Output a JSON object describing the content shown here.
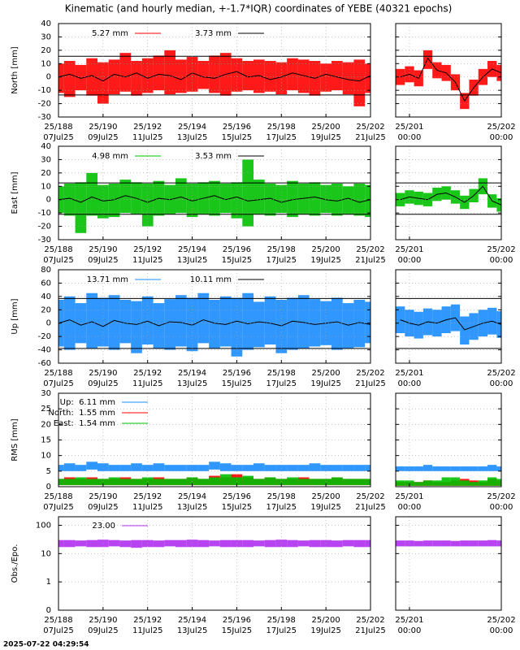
{
  "chart_data": {
    "type": "scatter",
    "title": "Kinematic (and hourly median, +-1.7*IQR) coordinates of YEBE (40321 epochs)",
    "timestamp": "2025-07-22 04:29:54",
    "grid": true,
    "x": [
      188,
      188.5,
      189,
      189.5,
      190,
      190.5,
      191,
      191.5,
      192,
      192.5,
      193,
      193.5,
      194,
      194.5,
      195,
      195.5,
      196,
      196.5,
      197,
      197.5,
      198,
      198.5,
      199,
      199.5,
      200,
      200.5,
      201,
      201.5,
      202
    ],
    "xlim": [
      188,
      202
    ],
    "xticks": [
      {
        "value": 188,
        "label": "25/188",
        "sublabel": "07Jul25"
      },
      {
        "value": 190,
        "label": "25/190",
        "sublabel": "09Jul25"
      },
      {
        "value": 192,
        "label": "25/192",
        "sublabel": "11Jul25"
      },
      {
        "value": 194,
        "label": "25/194",
        "sublabel": "13Jul25"
      },
      {
        "value": 196,
        "label": "25/196",
        "sublabel": "15Jul25"
      },
      {
        "value": 198,
        "label": "25/198",
        "sublabel": "17Jul25"
      },
      {
        "value": 200,
        "label": "25/200",
        "sublabel": "19Jul25"
      },
      {
        "value": 202,
        "label": "25/202",
        "sublabel": "21Jul25"
      }
    ],
    "zoom": {
      "x": [
        200.9,
        201,
        201.1,
        201.2,
        201.3,
        201.4,
        201.5,
        201.6,
        201.7,
        201.8,
        201.9,
        202
      ],
      "xlim": [
        200.85,
        202
      ],
      "xticks": [
        {
          "value": 201,
          "label": "25/201",
          "sublabel": "00:00"
        },
        {
          "value": 202,
          "label": "25/202",
          "sublabel": "00:00"
        }
      ]
    },
    "panels": [
      {
        "ylabel": "North [mm]",
        "ylim": [
          -30,
          40
        ],
        "yticks": [
          -30,
          -20,
          -10,
          0,
          10,
          20,
          30,
          40
        ],
        "log": false,
        "legend": "horizontal",
        "limits": [
          15.5,
          -13.5
        ],
        "series": [
          {
            "name": "5.27 mm",
            "color": "#ff0000",
            "low": [
              -12,
              -15,
              -10,
              -14,
              -20,
              -13,
              -11,
              -14,
              -12,
              -10,
              -13,
              -12,
              -11,
              -9,
              -12,
              -14,
              -11,
              -10,
              -12,
              -11,
              -13,
              -10,
              -12,
              -14,
              -11,
              -10,
              -13,
              -22,
              -12
            ],
            "high": [
              10,
              12,
              9,
              14,
              11,
              13,
              18,
              12,
              14,
              16,
              20,
              13,
              15,
              12,
              16,
              18,
              14,
              12,
              13,
              12,
              11,
              14,
              13,
              12,
              10,
              12,
              11,
              13,
              10
            ]
          },
          {
            "name": "3.73 mm",
            "color": "#000000",
            "values": [
              0,
              2,
              -1,
              1,
              -3,
              2,
              0,
              3,
              -1,
              2,
              1,
              -2,
              3,
              0,
              -1,
              2,
              4,
              0,
              1,
              -2,
              0,
              3,
              1,
              -1,
              2,
              0,
              -2,
              -3,
              1
            ]
          }
        ],
        "zoom_series": [
          {
            "low": [
              -6,
              -4,
              -7,
              6,
              -1,
              -3,
              -10,
              -24,
              -14,
              -6,
              0,
              -3
            ],
            "high": [
              6,
              8,
              5,
              20,
              11,
              9,
              2,
              -12,
              -2,
              6,
              12,
              9
            ]
          },
          {
            "values": [
              0,
              2,
              -1,
              14,
              5,
              3,
              -4,
              -18,
              -8,
              0,
              6,
              3
            ]
          }
        ]
      },
      {
        "ylabel": "East [mm]",
        "ylim": [
          -30,
          40
        ],
        "yticks": [
          -30,
          -20,
          -10,
          0,
          10,
          20,
          30,
          40
        ],
        "log": false,
        "legend": "horizontal",
        "limits": [
          12.5,
          -11
        ],
        "series": [
          {
            "name": "4.98 mm",
            "color": "#00c000",
            "low": [
              -10,
              -12,
              -25,
              -12,
              -14,
              -13,
              -10,
              -11,
              -20,
              -12,
              -11,
              -10,
              -13,
              -11,
              -12,
              -10,
              -14,
              -20,
              -11,
              -12,
              -10,
              -13,
              -11,
              -12,
              -10,
              -12,
              -11,
              -12,
              -13
            ],
            "high": [
              10,
              12,
              13,
              20,
              11,
              12,
              15,
              13,
              12,
              14,
              11,
              16,
              12,
              13,
              14,
              12,
              13,
              30,
              15,
              12,
              11,
              14,
              12,
              13,
              11,
              12,
              10,
              12,
              11
            ]
          },
          {
            "name": "3.53 mm",
            "color": "#000000",
            "values": [
              0,
              1,
              -2,
              2,
              -1,
              0,
              3,
              1,
              -2,
              1,
              0,
              2,
              -1,
              1,
              3,
              0,
              2,
              -1,
              0,
              1,
              -2,
              0,
              1,
              2,
              0,
              -1,
              1,
              -2,
              0
            ]
          }
        ],
        "zoom_series": [
          {
            "low": [
              -5,
              -3,
              -4,
              -5,
              -1,
              0,
              -3,
              -7,
              -2,
              4,
              -6,
              -9
            ],
            "high": [
              5,
              7,
              6,
              5,
              9,
              10,
              7,
              3,
              8,
              16,
              4,
              1
            ]
          },
          {
            "values": [
              0,
              2,
              1,
              0,
              4,
              5,
              2,
              -2,
              3,
              10,
              -1,
              -4
            ]
          }
        ]
      },
      {
        "ylabel": "Up [mm]",
        "ylim": [
          -60,
          80
        ],
        "yticks": [
          -60,
          -40,
          -20,
          0,
          20,
          40,
          60,
          80
        ],
        "log": false,
        "legend": "horizontal",
        "limits": [
          37,
          -38
        ],
        "series": [
          {
            "name": "13.71 mm",
            "color": "#1a8cff",
            "low": [
              -35,
              -40,
              -30,
              -38,
              -35,
              -40,
              -30,
              -45,
              -32,
              -38,
              -40,
              -35,
              -42,
              -30,
              -38,
              -35,
              -50,
              -40,
              -36,
              -32,
              -45,
              -40,
              -38,
              -35,
              -33,
              -40,
              -38,
              -36,
              -30
            ],
            "high": [
              35,
              40,
              30,
              45,
              38,
              42,
              35,
              33,
              40,
              30,
              36,
              42,
              38,
              45,
              35,
              40,
              38,
              45,
              32,
              40,
              35,
              38,
              42,
              36,
              33,
              38,
              30,
              35,
              32
            ]
          },
          {
            "name": "10.11 mm",
            "color": "#000000",
            "values": [
              0,
              5,
              -3,
              2,
              -5,
              4,
              0,
              -2,
              3,
              -4,
              2,
              1,
              -3,
              5,
              0,
              -2,
              3,
              -1,
              2,
              0,
              -4,
              3,
              1,
              -2,
              0,
              2,
              -3,
              1,
              -2
            ]
          }
        ],
        "zoom_series": [
          {
            "low": [
              -15,
              -20,
              -23,
              -18,
              -20,
              -15,
              -12,
              -32,
              -25,
              -20,
              -17,
              -22
            ],
            "high": [
              25,
              20,
              17,
              22,
              20,
              25,
              28,
              10,
              15,
              20,
              23,
              18
            ]
          },
          {
            "values": [
              5,
              0,
              -3,
              2,
              0,
              5,
              8,
              -10,
              -5,
              0,
              3,
              -2
            ]
          }
        ]
      },
      {
        "ylabel": "RMS [mm]",
        "ylim": [
          0,
          30
        ],
        "yticks": [
          0,
          5,
          10,
          15,
          20,
          25,
          30
        ],
        "log": false,
        "legend": "vertical",
        "series": [
          {
            "name": "Up:  6.11 mm",
            "color": "#1a8cff",
            "low": [
              5,
              5,
              5,
              5.5,
              5,
              5,
              5,
              5,
              5,
              5,
              5,
              5,
              5,
              5,
              5.5,
              5,
              5,
              5,
              5,
              5,
              5,
              5,
              5,
              5,
              5,
              5,
              5,
              5,
              5
            ],
            "high": [
              7,
              7.5,
              7,
              8,
              7.5,
              7,
              7,
              7.5,
              7,
              7.5,
              7,
              7,
              7,
              7,
              8,
              7.5,
              7,
              7,
              7.5,
              7,
              7,
              7,
              7,
              7.5,
              7,
              7,
              7,
              7,
              7
            ]
          },
          {
            "name": "North:  1.55 mm",
            "color": "#ff0000",
            "low": [
              0.5,
              0.5,
              0.5,
              0.5,
              0.5,
              0.5,
              0.5,
              0.5,
              0.5,
              0.5,
              0.5,
              0.5,
              0.5,
              0.5,
              0.5,
              0.5,
              0.5,
              0.5,
              0.5,
              0.5,
              0.5,
              0.5,
              0.5,
              0.5,
              0.5,
              0.5,
              0.5,
              0.5,
              0.5
            ],
            "high": [
              2.5,
              3,
              2.5,
              3,
              2.5,
              2.5,
              3,
              2.5,
              2.5,
              3,
              2.5,
              2.5,
              3,
              2.5,
              3.5,
              3,
              4,
              3,
              2.5,
              3,
              2.5,
              2.5,
              3,
              2.5,
              2.5,
              3,
              2.5,
              2.5,
              2.5
            ]
          },
          {
            "name": "East:  1.54 mm",
            "color": "#00c000",
            "low": [
              0.5,
              0.5,
              0.5,
              0.5,
              0.5,
              0.5,
              0.5,
              0.5,
              0.5,
              0.5,
              0.5,
              0.5,
              0.5,
              0.5,
              0.5,
              0.5,
              0.5,
              0.5,
              0.5,
              0.5,
              0.5,
              0.5,
              0.5,
              0.5,
              0.5,
              0.5,
              0.5,
              0.5,
              0.5
            ],
            "high": [
              2.5,
              2.5,
              3,
              2.5,
              2.5,
              3,
              2.5,
              2.5,
              3,
              2.5,
              2.5,
              2.5,
              3,
              2.5,
              3,
              4,
              3,
              3.5,
              2.5,
              3,
              2.5,
              3,
              2.5,
              2.5,
              2.5,
              3,
              2.5,
              2.5,
              2.5
            ]
          }
        ],
        "zoom_series": [
          {
            "low": [
              5,
              5,
              5,
              5,
              5,
              5,
              5,
              5,
              5,
              5,
              5,
              5
            ],
            "high": [
              6.5,
              6.5,
              6.5,
              7,
              6.5,
              6.5,
              6.5,
              6.5,
              6.5,
              6.5,
              7,
              6.5
            ]
          },
          {
            "low": [
              0.3,
              0.3,
              0.3,
              0.3,
              0.3,
              0.3,
              0.3,
              0.3,
              0.3,
              0.3,
              0.3,
              0.3
            ],
            "high": [
              1.5,
              1.5,
              1.5,
              2,
              1.5,
              1.5,
              2,
              2.5,
              2,
              1.5,
              2.5,
              2
            ]
          },
          {
            "low": [
              0.3,
              0.3,
              0.3,
              0.3,
              0.3,
              0.3,
              0.3,
              0.3,
              0.3,
              0.3,
              0.3,
              0.3
            ],
            "high": [
              2,
              2,
              1.5,
              2,
              2,
              3,
              3,
              2,
              1.5,
              2,
              3,
              2.5
            ]
          }
        ]
      },
      {
        "ylabel": "Obs./Epo.",
        "ylim": [
          0.1,
          200
        ],
        "yticks": [
          {
            "value": 0.1,
            "label": "0"
          },
          1,
          10,
          100
        ],
        "log": true,
        "legend": "vertical",
        "series": [
          {
            "name": "23.00",
            "color": "#b030f0",
            "low": [
              17,
              17,
              18,
              17,
              17,
              18,
              17,
              16,
              17,
              17,
              18,
              17,
              17,
              17,
              18,
              17,
              17,
              17,
              18,
              17,
              17,
              17,
              18,
              17,
              17,
              17,
              18,
              17,
              17
            ],
            "high": [
              30,
              30,
              29,
              30,
              31,
              30,
              29,
              30,
              30,
              29,
              30,
              30,
              31,
              30,
              29,
              30,
              30,
              30,
              29,
              30,
              31,
              30,
              29,
              30,
              30,
              29,
              30,
              30,
              30
            ]
          }
        ],
        "zoom_series": [
          {
            "low": [
              18,
              18,
              18,
              18,
              18,
              18,
              18,
              18,
              18,
              18,
              18,
              18
            ],
            "high": [
              29,
              29,
              28,
              29,
              29,
              29,
              28,
              29,
              29,
              29,
              30,
              29
            ]
          }
        ]
      }
    ]
  }
}
